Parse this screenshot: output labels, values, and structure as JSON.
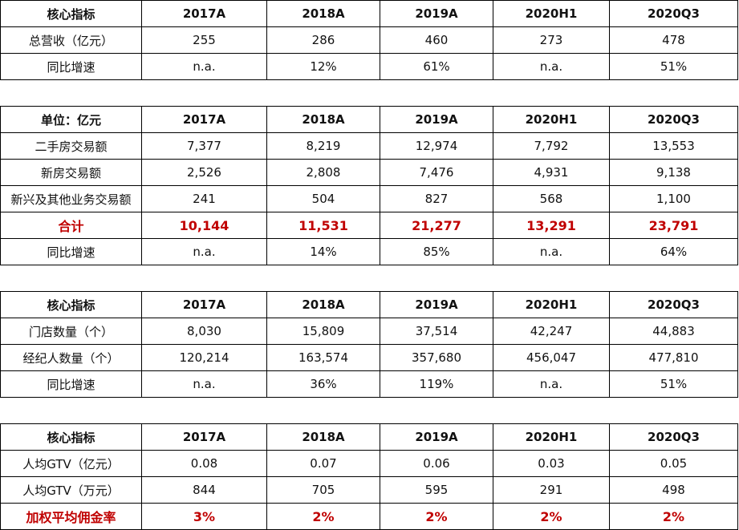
{
  "block1": {
    "header": [
      "核心指标",
      "2017A",
      "2018A",
      "2019A",
      "2020H1",
      "2020Q3"
    ],
    "rows": [
      [
        "总营收（亿元）",
        "255",
        "286",
        "460",
        "273",
        "478"
      ],
      [
        "同比增速",
        "n.a.",
        "12%",
        "61%",
        "n.a.",
        "51%"
      ]
    ]
  },
  "block2": {
    "header": [
      "单位：亿元",
      "2017A",
      "2018A",
      "2019A",
      "2020H1",
      "2020Q3"
    ],
    "rows": [
      [
        "二手房交易额",
        "7,377",
        "8,219",
        "12,974",
        "7,792",
        "13,553"
      ],
      [
        "新房交易额",
        "2,526",
        "2,808",
        "7,476",
        "4,931",
        "9,138"
      ],
      [
        "新兴及其他业务交易额",
        "241",
        "504",
        "827",
        "568",
        "1,100"
      ],
      [
        "合计",
        "10,144",
        "11,531",
        "21,277",
        "13,291",
        "23,791"
      ],
      [
        "同比增速",
        "n.a.",
        "14%",
        "85%",
        "n.a.",
        "64%"
      ]
    ]
  },
  "block3": {
    "header": [
      "核心指标",
      "2017A",
      "2018A",
      "2019A",
      "2020H1",
      "2020Q3"
    ],
    "rows": [
      [
        "门店数量（个）",
        "8,030",
        "15,809",
        "37,514",
        "42,247",
        "44,883"
      ],
      [
        "经纪人数量（个）",
        "120,214",
        "163,574",
        "357,680",
        "456,047",
        "477,810"
      ],
      [
        "同比增速",
        "n.a.",
        "36%",
        "119%",
        "n.a.",
        "51%"
      ]
    ]
  },
  "block4": {
    "header": [
      "核心指标",
      "2017A",
      "2018A",
      "2019A",
      "2020H1",
      "2020Q3"
    ],
    "rows": [
      [
        "人均GTV（亿元）",
        "0.08",
        "0.07",
        "0.06",
        "0.03",
        "0.05"
      ],
      [
        "人均GTV（万元）",
        "844",
        "705",
        "595",
        "291",
        "498"
      ],
      [
        "加权平均佣金率",
        "3%",
        "2%",
        "2%",
        "2%",
        "2%"
      ]
    ]
  },
  "colors": {
    "highlight": "#c00000",
    "border": "#000000",
    "text": "#111111"
  }
}
